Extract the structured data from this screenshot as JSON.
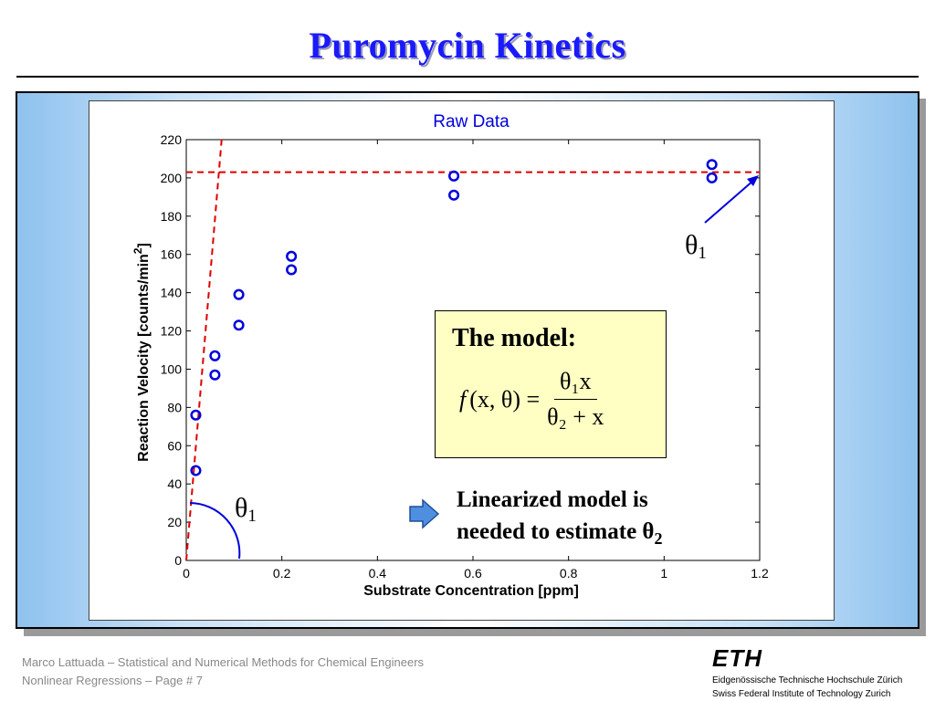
{
  "slide": {
    "title": "Puromycin Kinetics"
  },
  "chart_data": {
    "type": "scatter",
    "title": "Raw Data",
    "xlabel": "Substrate Concentration [ppm]",
    "ylabel": "Reaction Velocity [counts/min",
    "ylabel_sup": "2",
    "ylabel_close": "]",
    "xlim": [
      0,
      1.2
    ],
    "ylim": [
      0,
      220
    ],
    "xticks": [
      0,
      0.2,
      0.4,
      0.6,
      0.8,
      1,
      1.2
    ],
    "xtick_labels": [
      "0",
      "0.2",
      "0.4",
      "0.6",
      "0.8",
      "1",
      "1.2"
    ],
    "yticks": [
      0,
      20,
      40,
      60,
      80,
      100,
      120,
      140,
      160,
      180,
      200,
      220
    ],
    "ytick_labels": [
      "0",
      "20",
      "40",
      "60",
      "80",
      "100",
      "120",
      "140",
      "160",
      "180",
      "200",
      "220"
    ],
    "grid": false,
    "marker": "open-circle",
    "marker_color": "#0000dd",
    "points": [
      {
        "x": 0.02,
        "y": 76
      },
      {
        "x": 0.02,
        "y": 47
      },
      {
        "x": 0.06,
        "y": 97
      },
      {
        "x": 0.06,
        "y": 107
      },
      {
        "x": 0.11,
        "y": 123
      },
      {
        "x": 0.11,
        "y": 139
      },
      {
        "x": 0.22,
        "y": 159
      },
      {
        "x": 0.22,
        "y": 152
      },
      {
        "x": 0.56,
        "y": 191
      },
      {
        "x": 0.56,
        "y": 201
      },
      {
        "x": 1.1,
        "y": 207
      },
      {
        "x": 1.1,
        "y": 200
      }
    ],
    "reference_lines": {
      "color": "#dd0000",
      "asymptote_y": 203,
      "initial_slope_line": [
        {
          "x": 0,
          "y": 0
        },
        {
          "x": 0.074,
          "y": 220
        }
      ]
    },
    "annotations": {
      "theta1_symbol": "θ",
      "theta1_subscript": "1",
      "annotation_color": "#0000dd"
    }
  },
  "model_box": {
    "heading": "The model:",
    "f": "f",
    "args": "(x, θ) =",
    "numerator": "θ₁x",
    "denominator": "θ₂ + x"
  },
  "note": {
    "line1": "Linearized model is",
    "line2_prefix": "needed to estimate θ",
    "line2_sub": "2"
  },
  "footer": {
    "line1": "Marco Lattuada – Statistical and Numerical Methods for Chemical Engineers",
    "line2": "Nonlinear Regressions – Page #  7"
  },
  "logo": {
    "text": "ETH",
    "name_de": "Eidgenössische Technische Hochschule Zürich",
    "name_en": "Swiss Federal Institute of Technology Zurich"
  }
}
